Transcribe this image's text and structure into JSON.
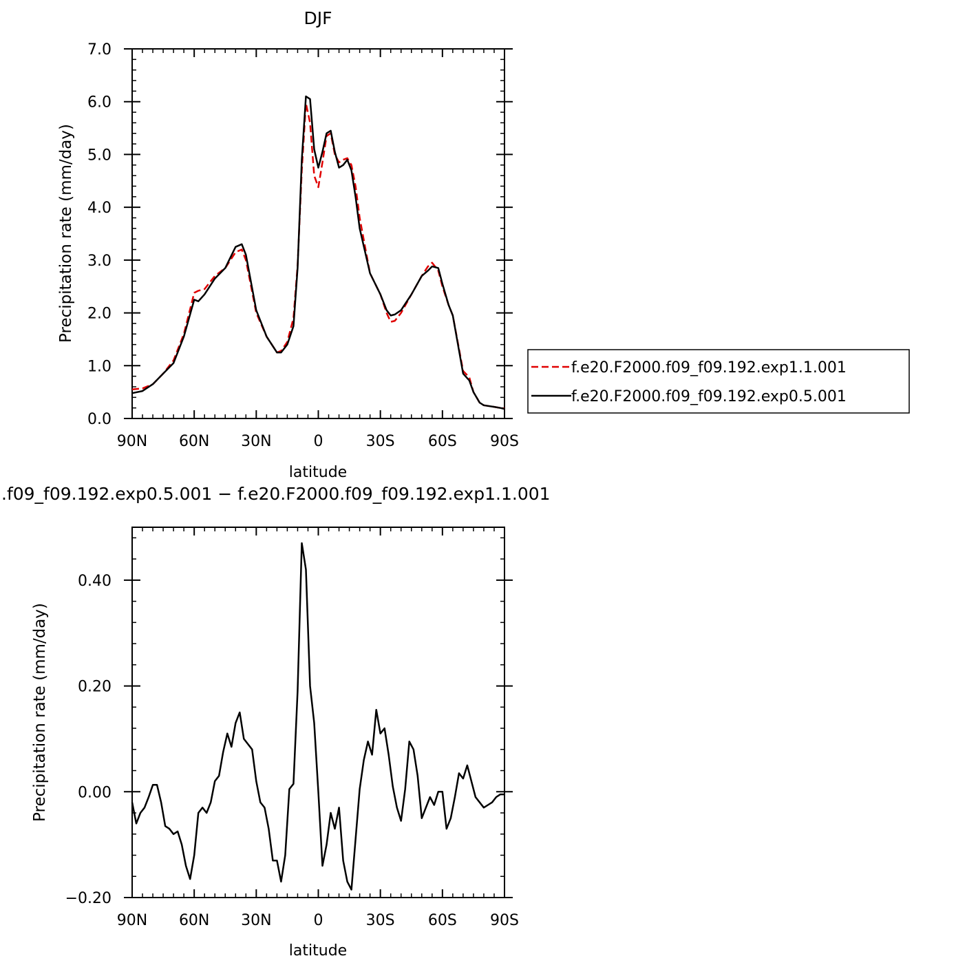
{
  "chart_data": [
    {
      "type": "line",
      "title": "DJF",
      "xlabel": "latitude",
      "ylabel": "Precipitation rate (mm/day)",
      "xlim": [
        -90,
        90
      ],
      "ylim": [
        0,
        7
      ],
      "xticks": [
        -90,
        -60,
        -30,
        0,
        30,
        60,
        90
      ],
      "xtick_labels": [
        "90N",
        "60N",
        "30N",
        "0",
        "30S",
        "60S",
        "90S"
      ],
      "yticks": [
        0,
        1,
        2,
        3,
        4,
        5,
        6,
        7
      ],
      "ytick_labels": [
        "0.0",
        "1.0",
        "2.0",
        "3.0",
        "4.0",
        "5.0",
        "6.0",
        "7.0"
      ],
      "legend_position": "right",
      "series": [
        {
          "name": "f.e20.F2000.f09_f09.192.exp1.1.001",
          "color": "#e00000",
          "dash": "dashed",
          "x": [
            -90,
            -85,
            -80,
            -75,
            -70,
            -65,
            -60,
            -58,
            -55,
            -50,
            -45,
            -40,
            -37,
            -35,
            -30,
            -25,
            -20,
            -18,
            -15,
            -12,
            -10,
            -8,
            -6,
            -4,
            -2,
            0,
            2,
            4,
            6,
            8,
            10,
            12,
            14,
            16,
            18,
            20,
            25,
            30,
            33,
            35,
            37,
            40,
            45,
            50,
            53,
            55,
            58,
            60,
            63,
            65,
            70,
            73,
            75,
            78,
            80,
            85,
            88,
            90
          ],
          "y": [
            0.55,
            0.57,
            0.65,
            0.85,
            1.1,
            1.6,
            2.38,
            2.42,
            2.45,
            2.7,
            2.85,
            3.15,
            3.2,
            3.0,
            2.0,
            1.55,
            1.25,
            1.28,
            1.45,
            1.9,
            2.9,
            4.7,
            5.97,
            5.6,
            4.6,
            4.38,
            4.85,
            5.35,
            5.4,
            5.0,
            4.85,
            4.9,
            4.93,
            4.8,
            4.4,
            3.8,
            2.75,
            2.35,
            2.0,
            1.83,
            1.85,
            2.0,
            2.35,
            2.7,
            2.88,
            2.95,
            2.8,
            2.5,
            2.15,
            1.95,
            0.9,
            0.78,
            0.5,
            0.3,
            0.25,
            0.22,
            0.2,
            0.19
          ]
        },
        {
          "name": "f.e20.F2000.f09_f09.192.exp0.5.001",
          "color": "#000000",
          "dash": "solid",
          "x": [
            -90,
            -85,
            -80,
            -75,
            -70,
            -65,
            -60,
            -58,
            -55,
            -50,
            -45,
            -40,
            -37,
            -35,
            -30,
            -25,
            -20,
            -18,
            -15,
            -12,
            -10,
            -8,
            -6,
            -4,
            -2,
            0,
            2,
            4,
            6,
            8,
            10,
            12,
            14,
            16,
            18,
            20,
            25,
            30,
            33,
            35,
            37,
            40,
            45,
            50,
            53,
            55,
            58,
            60,
            63,
            65,
            70,
            73,
            75,
            78,
            80,
            85,
            88,
            90
          ],
          "y": [
            0.48,
            0.52,
            0.65,
            0.85,
            1.05,
            1.55,
            2.25,
            2.22,
            2.35,
            2.65,
            2.85,
            3.25,
            3.3,
            3.1,
            2.05,
            1.55,
            1.25,
            1.25,
            1.4,
            1.75,
            2.85,
            4.9,
            6.1,
            6.05,
            5.1,
            4.75,
            5.05,
            5.4,
            5.45,
            5.05,
            4.75,
            4.8,
            4.9,
            4.7,
            4.2,
            3.6,
            2.75,
            2.35,
            2.05,
            1.95,
            1.97,
            2.05,
            2.35,
            2.7,
            2.8,
            2.88,
            2.85,
            2.55,
            2.15,
            1.95,
            0.85,
            0.72,
            0.5,
            0.3,
            0.25,
            0.22,
            0.2,
            0.18
          ]
        }
      ]
    },
    {
      "type": "line",
      "title": ".f09_f09.192.exp0.5.001 − f.e20.F2000.f09_f09.192.exp1.1.001",
      "xlabel": "latitude",
      "ylabel": "Precipitation rate (mm/day)",
      "xlim": [
        -90,
        90
      ],
      "ylim": [
        -0.2,
        0.5
      ],
      "xticks": [
        -90,
        -60,
        -30,
        0,
        30,
        60,
        90
      ],
      "xtick_labels": [
        "90N",
        "60N",
        "30N",
        "0",
        "30S",
        "60S",
        "90S"
      ],
      "yticks": [
        -0.2,
        0.0,
        0.2,
        0.4
      ],
      "ytick_labels": [
        "−0.20",
        "0.00",
        "0.20",
        "0.40"
      ],
      "series": [
        {
          "color": "#000000",
          "x": [
            -90,
            -88,
            -86,
            -84,
            -82,
            -80,
            -78,
            -76,
            -74,
            -72,
            -70,
            -68,
            -66,
            -64,
            -62,
            -60,
            -58,
            -56,
            -54,
            -52,
            -50,
            -48,
            -46,
            -44,
            -42,
            -40,
            -38,
            -36,
            -34,
            -32,
            -30,
            -28,
            -26,
            -24,
            -22,
            -20,
            -18,
            -16,
            -14,
            -12,
            -10,
            -8,
            -6,
            -4,
            -2,
            0,
            2,
            4,
            6,
            8,
            10,
            12,
            14,
            16,
            18,
            20,
            22,
            24,
            26,
            28,
            30,
            32,
            34,
            36,
            38,
            40,
            42,
            44,
            46,
            48,
            50,
            52,
            54,
            56,
            58,
            60,
            62,
            64,
            66,
            68,
            70,
            72,
            74,
            76,
            78,
            80,
            82,
            84,
            86,
            88,
            90
          ],
          "y": [
            -0.02,
            -0.06,
            -0.04,
            -0.03,
            -0.01,
            0.013,
            0.013,
            -0.02,
            -0.065,
            -0.07,
            -0.08,
            -0.075,
            -0.1,
            -0.14,
            -0.165,
            -0.12,
            -0.04,
            -0.03,
            -0.04,
            -0.02,
            0.02,
            0.03,
            0.075,
            0.11,
            0.085,
            0.13,
            0.15,
            0.1,
            0.09,
            0.08,
            0.02,
            -0.02,
            -0.03,
            -0.07,
            -0.13,
            -0.13,
            -0.17,
            -0.12,
            0.005,
            0.015,
            0.19,
            0.47,
            0.42,
            0.2,
            0.13,
            0.0,
            -0.14,
            -0.1,
            -0.04,
            -0.07,
            -0.03,
            -0.13,
            -0.17,
            -0.185,
            -0.09,
            0.005,
            0.06,
            0.095,
            0.07,
            0.155,
            0.11,
            0.12,
            0.07,
            0.01,
            -0.03,
            -0.055,
            0.005,
            0.095,
            0.08,
            0.03,
            -0.05,
            -0.03,
            -0.01,
            -0.025,
            0.0,
            0.0,
            -0.07,
            -0.05,
            -0.01,
            0.035,
            0.025,
            0.05,
            0.02,
            -0.01,
            -0.02,
            -0.03,
            -0.025,
            -0.02,
            -0.01,
            -0.005,
            -0.005
          ]
        }
      ]
    }
  ]
}
